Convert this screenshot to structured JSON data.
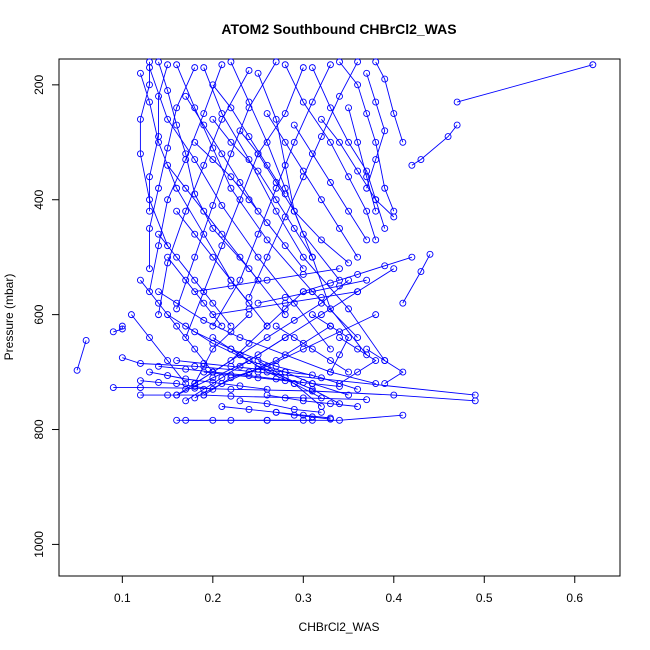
{
  "chart_data": {
    "type": "line",
    "title": "ATOM2 Southbound CHBrCl2_WAS",
    "xlabel": "CHBrCl2_WAS",
    "ylabel": "Pressure (mbar)",
    "xlim": [
      0.03,
      0.65
    ],
    "ylim": [
      1055,
      155
    ],
    "y_reversed": true,
    "x_ticks": [
      0.1,
      0.2,
      0.3,
      0.4,
      0.5,
      0.6
    ],
    "x_tick_labels": [
      "0.1",
      "0.2",
      "0.3",
      "0.4",
      "0.5",
      "0.6"
    ],
    "y_ticks": [
      200,
      400,
      600,
      800,
      1000
    ],
    "y_tick_labels": [
      "200",
      "400",
      "600",
      "800",
      "1000"
    ],
    "grid": false,
    "legend": "none",
    "marker": "open-circle",
    "series_color": "#0000ff",
    "series": [
      {
        "x": [
          0.62,
          0.47
        ],
        "y": [
          165,
          230
        ]
      },
      {
        "x": [
          0.47,
          0.46,
          0.43,
          0.42
        ],
        "y": [
          270,
          290,
          330,
          340
        ]
      },
      {
        "x": [
          0.44,
          0.43,
          0.41
        ],
        "y": [
          495,
          525,
          580
        ]
      },
      {
        "x": [
          0.05,
          0.06
        ],
        "y": [
          697,
          645
        ]
      },
      {
        "x": [
          0.09,
          0.1,
          0.1
        ],
        "y": [
          630,
          625,
          620
        ]
      },
      {
        "x": [
          0.1,
          0.12,
          0.18,
          0.25,
          0.49
        ],
        "y": [
          675,
          685,
          690,
          700,
          740
        ]
      },
      {
        "x": [
          0.09,
          0.12,
          0.18,
          0.22,
          0.31,
          0.4,
          0.49
        ],
        "y": [
          727,
          727,
          728,
          730,
          733,
          740,
          750
        ]
      },
      {
        "x": [
          0.16,
          0.2,
          0.26,
          0.3,
          0.34,
          0.41
        ],
        "y": [
          784,
          784,
          784,
          784,
          784,
          775
        ]
      },
      {
        "x": [
          0.17,
          0.22,
          0.26,
          0.31
        ],
        "y": [
          784,
          784,
          784,
          784
        ]
      },
      {
        "x": [
          0.12,
          0.15,
          0.19,
          0.22,
          0.3,
          0.37
        ],
        "y": [
          740,
          740,
          740,
          742,
          745,
          748
        ]
      },
      {
        "x": [
          0.12,
          0.14,
          0.16,
          0.18,
          0.2
        ],
        "y": [
          715,
          718,
          720,
          725,
          730
        ]
      },
      {
        "x": [
          0.14,
          0.15,
          0.16,
          0.17,
          0.18,
          0.2,
          0.24,
          0.28
        ],
        "y": [
          160,
          210,
          270,
          320,
          390,
          450,
          520,
          600
        ]
      },
      {
        "x": [
          0.12,
          0.13,
          0.14,
          0.16,
          0.19,
          0.22,
          0.26
        ],
        "y": [
          180,
          230,
          300,
          380,
          460,
          540,
          620
        ]
      },
      {
        "x": [
          0.13,
          0.15,
          0.18,
          0.21,
          0.25,
          0.29,
          0.33
        ],
        "y": [
          170,
          260,
          330,
          410,
          500,
          580,
          660
        ]
      },
      {
        "x": [
          0.16,
          0.18,
          0.2,
          0.22,
          0.26,
          0.31,
          0.36
        ],
        "y": [
          165,
          240,
          310,
          380,
          470,
          560,
          640
        ]
      },
      {
        "x": [
          0.19,
          0.21,
          0.24,
          0.27,
          0.3,
          0.35,
          0.39
        ],
        "y": [
          170,
          250,
          330,
          420,
          500,
          590,
          680
        ]
      },
      {
        "x": [
          0.22,
          0.24,
          0.26,
          0.28,
          0.3,
          0.34
        ],
        "y": [
          160,
          230,
          300,
          380,
          460,
          540
        ]
      },
      {
        "x": [
          0.25,
          0.27,
          0.28,
          0.29,
          0.31,
          0.33,
          0.37
        ],
        "y": [
          180,
          260,
          340,
          420,
          500,
          590,
          670
        ]
      },
      {
        "x": [
          0.28,
          0.3,
          0.33,
          0.35,
          0.37,
          0.38
        ],
        "y": [
          165,
          230,
          300,
          360,
          420,
          470
        ]
      },
      {
        "x": [
          0.31,
          0.33,
          0.35,
          0.37,
          0.38,
          0.39
        ],
        "y": [
          170,
          240,
          300,
          350,
          400,
          450
        ]
      },
      {
        "x": [
          0.34,
          0.36,
          0.37,
          0.38,
          0.39,
          0.4
        ],
        "y": [
          160,
          200,
          250,
          300,
          380,
          420
        ]
      },
      {
        "x": [
          0.37,
          0.38,
          0.39,
          0.38,
          0.37
        ],
        "y": [
          180,
          230,
          280,
          330,
          380
        ]
      },
      {
        "x": [
          0.38,
          0.39,
          0.4,
          0.41
        ],
        "y": [
          160,
          190,
          250,
          300
        ]
      },
      {
        "x": [
          0.36,
          0.34,
          0.32,
          0.3,
          0.28,
          0.26,
          0.24
        ],
        "y": [
          160,
          220,
          290,
          360,
          430,
          500,
          570
        ]
      },
      {
        "x": [
          0.33,
          0.31,
          0.29,
          0.27,
          0.25,
          0.23,
          0.2
        ],
        "y": [
          165,
          230,
          300,
          380,
          460,
          540,
          620
        ]
      },
      {
        "x": [
          0.3,
          0.28,
          0.25,
          0.23,
          0.21,
          0.19,
          0.17
        ],
        "y": [
          170,
          250,
          320,
          400,
          480,
          560,
          640
        ]
      },
      {
        "x": [
          0.27,
          0.24,
          0.22,
          0.2,
          0.18,
          0.16
        ],
        "y": [
          160,
          240,
          320,
          410,
          500,
          590
        ]
      },
      {
        "x": [
          0.24,
          0.21,
          0.19,
          0.17,
          0.15,
          0.14
        ],
        "y": [
          175,
          260,
          340,
          420,
          510,
          600
        ]
      },
      {
        "x": [
          0.21,
          0.19,
          0.17,
          0.15,
          0.14,
          0.13
        ],
        "y": [
          165,
          250,
          330,
          400,
          480,
          560
        ]
      },
      {
        "x": [
          0.18,
          0.16,
          0.15,
          0.14,
          0.13,
          0.13
        ],
        "y": [
          170,
          240,
          310,
          380,
          450,
          520
        ]
      },
      {
        "x": [
          0.15,
          0.14,
          0.14,
          0.13,
          0.13
        ],
        "y": [
          165,
          220,
          290,
          360,
          420
        ]
      },
      {
        "x": [
          0.13,
          0.13,
          0.12,
          0.12,
          0.13,
          0.15
        ],
        "y": [
          160,
          200,
          260,
          320,
          400,
          480
        ]
      },
      {
        "x": [
          0.14,
          0.16,
          0.19,
          0.23,
          0.28,
          0.33,
          0.38
        ],
        "y": [
          560,
          580,
          610,
          640,
          670,
          700,
          720
        ]
      },
      {
        "x": [
          0.15,
          0.18,
          0.22,
          0.27,
          0.32,
          0.36
        ],
        "y": [
          600,
          630,
          660,
          690,
          710,
          730
        ]
      },
      {
        "x": [
          0.17,
          0.2,
          0.24,
          0.28,
          0.31,
          0.35
        ],
        "y": [
          620,
          650,
          680,
          700,
          720,
          740
        ]
      },
      {
        "x": [
          0.2,
          0.23,
          0.26,
          0.29,
          0.32
        ],
        "y": [
          640,
          670,
          700,
          720,
          745
        ]
      },
      {
        "x": [
          0.22,
          0.25,
          0.28,
          0.31,
          0.34
        ],
        "y": [
          660,
          690,
          710,
          730,
          755
        ]
      },
      {
        "x": [
          0.25,
          0.27,
          0.29,
          0.32
        ],
        "y": [
          680,
          700,
          720,
          760
        ]
      },
      {
        "x": [
          0.3,
          0.28,
          0.26,
          0.24,
          0.22,
          0.2,
          0.18
        ],
        "y": [
          560,
          590,
          620,
          650,
          680,
          700,
          720
        ]
      },
      {
        "x": [
          0.35,
          0.32,
          0.29,
          0.26,
          0.23,
          0.2,
          0.17
        ],
        "y": [
          540,
          580,
          610,
          640,
          670,
          700,
          730
        ]
      },
      {
        "x": [
          0.4,
          0.36,
          0.32,
          0.28,
          0.24,
          0.2,
          0.16
        ],
        "y": [
          520,
          560,
          600,
          640,
          680,
          710,
          740
        ]
      },
      {
        "x": [
          0.38,
          0.34,
          0.3,
          0.26,
          0.22,
          0.19
        ],
        "y": [
          600,
          630,
          660,
          690,
          710,
          740
        ]
      },
      {
        "x": [
          0.33,
          0.3,
          0.27,
          0.24,
          0.21,
          0.18
        ],
        "y": [
          620,
          650,
          680,
          700,
          720,
          745
        ]
      },
      {
        "x": [
          0.28,
          0.25,
          0.23,
          0.21,
          0.19,
          0.17
        ],
        "y": [
          640,
          670,
          690,
          710,
          730,
          750
        ]
      },
      {
        "x": [
          0.24,
          0.22,
          0.2,
          0.19,
          0.18,
          0.16
        ],
        "y": [
          600,
          630,
          660,
          690,
          720,
          740
        ]
      },
      {
        "x": [
          0.26,
          0.28,
          0.3,
          0.33,
          0.36
        ],
        "y": [
          740,
          745,
          750,
          755,
          760
        ]
      },
      {
        "x": [
          0.21,
          0.24,
          0.27,
          0.3,
          0.33
        ],
        "y": [
          760,
          765,
          770,
          775,
          780
        ]
      },
      {
        "x": [
          0.23,
          0.26,
          0.29,
          0.32
        ],
        "y": [
          750,
          755,
          765,
          770
        ]
      },
      {
        "x": [
          0.27,
          0.29,
          0.31,
          0.33
        ],
        "y": [
          770,
          775,
          778,
          782
        ]
      },
      {
        "x": [
          0.19,
          0.22,
          0.25,
          0.28,
          0.31,
          0.34
        ],
        "y": [
          700,
          705,
          710,
          715,
          720,
          725
        ]
      },
      {
        "x": [
          0.16,
          0.19,
          0.22,
          0.25,
          0.28,
          0.31
        ],
        "y": [
          680,
          685,
          690,
          695,
          700,
          705
        ]
      },
      {
        "x": [
          0.14,
          0.17,
          0.2,
          0.24,
          0.27,
          0.3
        ],
        "y": [
          690,
          695,
          700,
          706,
          712,
          718
        ]
      },
      {
        "x": [
          0.13,
          0.15,
          0.17,
          0.2,
          0.23,
          0.26
        ],
        "y": [
          700,
          706,
          712,
          718,
          724,
          730
        ]
      },
      {
        "x": [
          0.18,
          0.2,
          0.22,
          0.24,
          0.26,
          0.28,
          0.3
        ],
        "y": [
          300,
          330,
          360,
          400,
          440,
          480,
          520
        ]
      },
      {
        "x": [
          0.2,
          0.22,
          0.25,
          0.27,
          0.29,
          0.31
        ],
        "y": [
          260,
          300,
          350,
          400,
          450,
          500
        ]
      },
      {
        "x": [
          0.23,
          0.25,
          0.27,
          0.29,
          0.32,
          0.35
        ],
        "y": [
          280,
          320,
          370,
          420,
          470,
          510
        ]
      },
      {
        "x": [
          0.26,
          0.28,
          0.3,
          0.32,
          0.34,
          0.36
        ],
        "y": [
          250,
          300,
          350,
          400,
          450,
          500
        ]
      },
      {
        "x": [
          0.29,
          0.31,
          0.33,
          0.35,
          0.37
        ],
        "y": [
          270,
          320,
          370,
          420,
          470
        ]
      },
      {
        "x": [
          0.32,
          0.34,
          0.36,
          0.38,
          0.4
        ],
        "y": [
          260,
          300,
          350,
          400,
          430
        ]
      },
      {
        "x": [
          0.35,
          0.36,
          0.37,
          0.38
        ],
        "y": [
          240,
          300,
          360,
          420
        ]
      },
      {
        "x": [
          0.2,
          0.22,
          0.24,
          0.26,
          0.28
        ],
        "y": [
          200,
          240,
          290,
          340,
          390
        ]
      },
      {
        "x": [
          0.17,
          0.19,
          0.21,
          0.23,
          0.25
        ],
        "y": [
          220,
          270,
          320,
          370,
          420
        ]
      },
      {
        "x": [
          0.15,
          0.17,
          0.19,
          0.21,
          0.23,
          0.25
        ],
        "y": [
          340,
          380,
          420,
          460,
          500,
          540
        ]
      },
      {
        "x": [
          0.16,
          0.18,
          0.2,
          0.22,
          0.24
        ],
        "y": [
          420,
          460,
          500,
          540,
          580
        ]
      },
      {
        "x": [
          0.14,
          0.16,
          0.18,
          0.2,
          0.22
        ],
        "y": [
          460,
          500,
          540,
          580,
          620
        ]
      },
      {
        "x": [
          0.15,
          0.17,
          0.19,
          0.21
        ],
        "y": [
          500,
          540,
          580,
          620
        ]
      },
      {
        "x": [
          0.12,
          0.14,
          0.16,
          0.18,
          0.2
        ],
        "y": [
          540,
          580,
          620,
          660,
          700
        ]
      },
      {
        "x": [
          0.11,
          0.13,
          0.15,
          0.17
        ],
        "y": [
          600,
          640,
          680,
          720
        ]
      },
      {
        "x": [
          0.3,
          0.33,
          0.36,
          0.39,
          0.42
        ],
        "y": [
          560,
          545,
          530,
          515,
          500
        ]
      },
      {
        "x": [
          0.25,
          0.28,
          0.31,
          0.34,
          0.37
        ],
        "y": [
          580,
          570,
          560,
          550,
          540
        ]
      },
      {
        "x": [
          0.2,
          0.24,
          0.28,
          0.32,
          0.36
        ],
        "y": [
          600,
          590,
          580,
          570,
          560
        ]
      },
      {
        "x": [
          0.18,
          0.22,
          0.26,
          0.3,
          0.34
        ],
        "y": [
          560,
          550,
          540,
          530,
          520
        ]
      },
      {
        "x": [
          0.34,
          0.36,
          0.38,
          0.36,
          0.34
        ],
        "y": [
          640,
          660,
          680,
          700,
          720
        ]
      },
      {
        "x": [
          0.31,
          0.33,
          0.35,
          0.34,
          0.33
        ],
        "y": [
          600,
          620,
          640,
          670,
          700
        ]
      },
      {
        "x": [
          0.37,
          0.39,
          0.41,
          0.39
        ],
        "y": [
          660,
          680,
          700,
          720
        ]
      },
      {
        "x": [
          0.27,
          0.29,
          0.31,
          0.33,
          0.35
        ],
        "y": [
          620,
          640,
          660,
          680,
          700
        ]
      }
    ]
  }
}
